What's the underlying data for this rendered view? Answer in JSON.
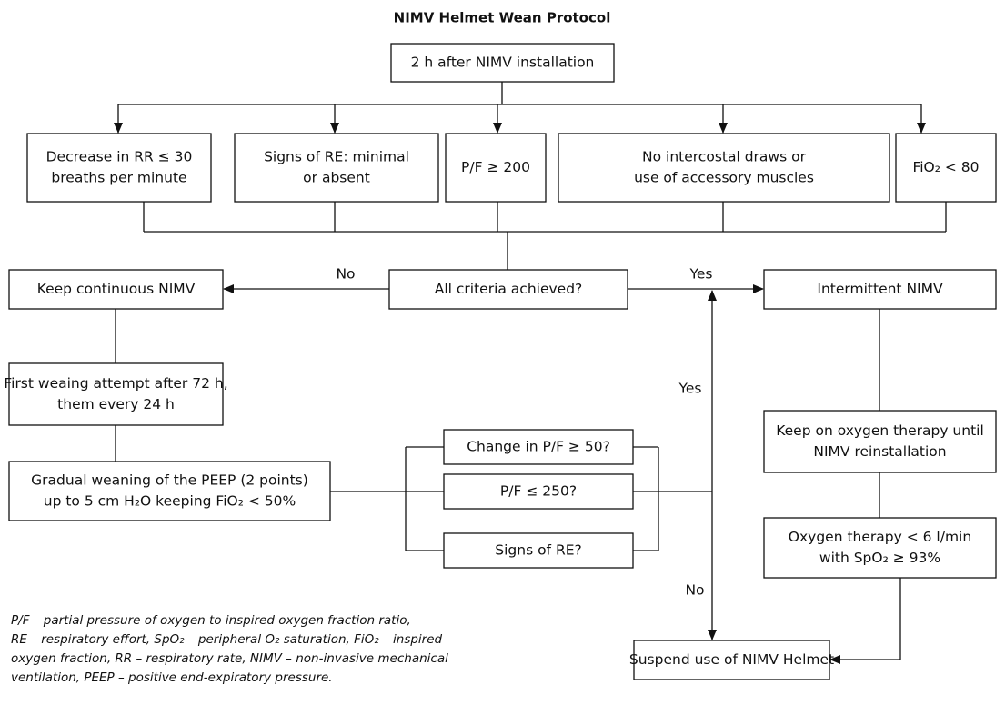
{
  "title": "NIMV Helmet Wean Protocol",
  "nodes": [
    {
      "lines": [
        "2 h after NIMV installation"
      ]
    },
    {
      "lines": [
        "Decrease in RR ≤ 30",
        "breaths per minute"
      ]
    },
    {
      "lines": [
        "Signs of RE: minimal",
        "or absent"
      ]
    },
    {
      "lines": [
        "P/F ≥ 200"
      ]
    },
    {
      "lines": [
        "No intercostal draws or",
        "use of accessory muscles"
      ]
    },
    {
      "lines": [
        "FiO₂ < 80"
      ]
    },
    {
      "lines": [
        "All criteria achieved?"
      ]
    },
    {
      "lines": [
        "Keep continuous NIMV"
      ]
    },
    {
      "lines": [
        "Intermittent NIMV"
      ]
    },
    {
      "lines": [
        "First weaing attempt after 72 h,",
        "them every 24 h"
      ]
    },
    {
      "lines": [
        "Gradual weaning of the PEEP (2 points)",
        "up to 5 cm H₂O keeping FiO₂ < 50%"
      ]
    },
    {
      "lines": [
        "Change in P/F ≥ 50?"
      ]
    },
    {
      "lines": [
        "P/F ≤ 250?"
      ]
    },
    {
      "lines": [
        "Signs of RE?"
      ]
    },
    {
      "lines": [
        "Keep on oxygen therapy until",
        "NIMV reinstallation"
      ]
    },
    {
      "lines": [
        "Oxygen therapy < 6 l/min",
        "with SpO₂ ≥ 93%"
      ]
    },
    {
      "lines": [
        "Suspend use of NIMV Helmet"
      ]
    }
  ],
  "edge_labels": [
    "No",
    "Yes",
    "Yes",
    "No"
  ],
  "footnote": [
    "P/F – partial pressure of oxygen to inspired oxygen fraction ratio,",
    "RE – respiratory effort, SpO₂ – peripheral O₂ saturation, FiO₂ – inspired",
    "oxygen fraction, RR – respiratory rate, NIMV – non-invasive mechanical",
    "ventilation, PEEP – positive end-expiratory pressure."
  ]
}
